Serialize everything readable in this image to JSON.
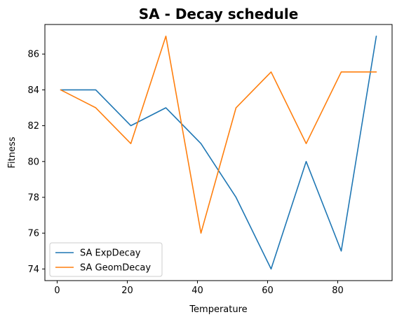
{
  "chart_data": {
    "type": "line",
    "title": "SA - Decay schedule",
    "xlabel": "Temperature",
    "ylabel": "Fitness",
    "x": [
      1,
      11,
      21,
      31,
      41,
      51,
      61,
      71,
      81,
      91
    ],
    "series": [
      {
        "name": "SA ExpDecay",
        "color": "#1f77b4",
        "values": [
          84,
          84,
          82,
          83,
          81,
          78,
          74,
          80,
          75,
          87
        ]
      },
      {
        "name": "SA GeomDecay",
        "color": "#ff7f0e",
        "values": [
          84,
          83,
          81,
          87,
          76,
          83,
          85,
          81,
          85,
          85
        ]
      }
    ],
    "xlim": [
      -3.5,
      95.5
    ],
    "ylim": [
      73.35,
      87.65
    ],
    "xticks": [
      0,
      20,
      40,
      60,
      80
    ],
    "yticks": [
      74,
      76,
      78,
      80,
      82,
      84,
      86
    ],
    "grid": false,
    "legend_position": "lower-left"
  }
}
